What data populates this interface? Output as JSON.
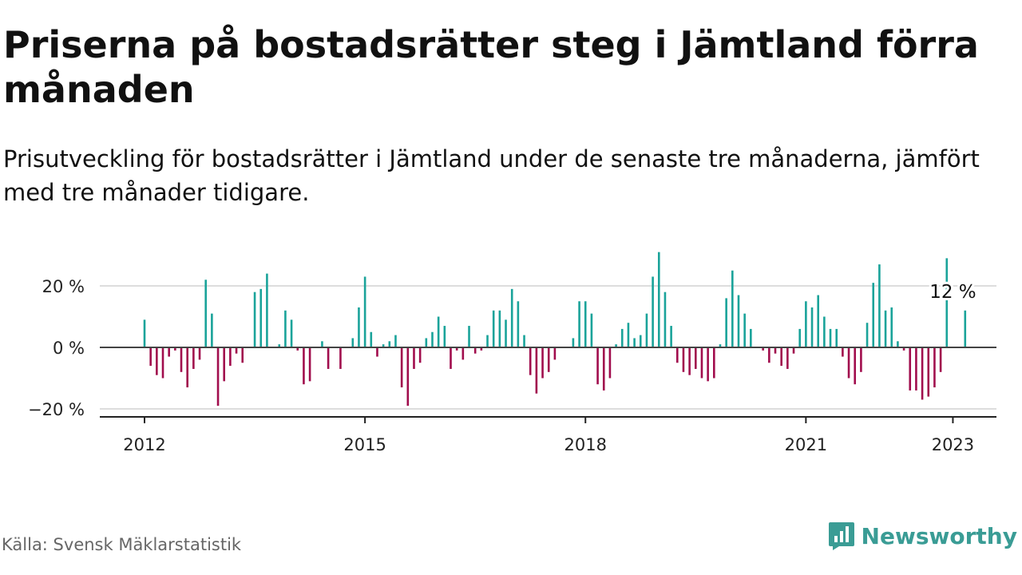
{
  "title": "Priserna på bostadsrätter steg i Jämtland förra månaden",
  "subtitle": "Prisutveckling för bostadsrätter i Jämtland under de senaste tre månaderna, jämfört med tre månader tidigare.",
  "source": "Källa: Svensk Mäklarstatistik",
  "brand": {
    "name": "Newsworthy",
    "logo_icon": "bar-chart-badge-icon",
    "color": "#3a9c95"
  },
  "colors": {
    "positive": "#1aa39a",
    "negative": "#a10d4d",
    "grid": "#dddddd",
    "zero_line": "#444444",
    "axis": "#222222"
  },
  "chart_data": {
    "type": "bar",
    "x_unit": "month",
    "start": "2012-01",
    "ylim": [
      -23,
      31
    ],
    "yticks": [
      20,
      0,
      -20
    ],
    "ytick_labels": [
      "20 %",
      "0 %",
      "−20 %"
    ],
    "xticks": [
      "2012",
      "2015",
      "2018",
      "2021",
      "2023"
    ],
    "annotation": {
      "text": "12 %",
      "at": "2023-01"
    },
    "values": [
      9,
      -6,
      -9,
      -10,
      -3,
      -1,
      -8,
      -13,
      -7,
      -4,
      22,
      11,
      -19,
      -11,
      -6,
      -2,
      -5,
      0,
      18,
      19,
      24,
      0,
      1,
      12,
      9,
      -1,
      -12,
      -11,
      0,
      2,
      -7,
      0,
      -7,
      0,
      3,
      13,
      23,
      5,
      -3,
      1,
      2,
      4,
      -13,
      -19,
      -7,
      -5,
      3,
      5,
      10,
      7,
      -7,
      -1,
      -4,
      7,
      -2,
      -1,
      4,
      12,
      12,
      9,
      19,
      15,
      4,
      -9,
      -15,
      -10,
      -8,
      -4,
      0,
      0,
      3,
      15,
      15,
      11,
      -12,
      -14,
      -10,
      1,
      6,
      8,
      3,
      4,
      11,
      23,
      31,
      18,
      7,
      -5,
      -8,
      -9,
      -7,
      -10,
      -11,
      -10,
      1,
      16,
      25,
      17,
      11,
      6,
      0,
      -1,
      -5,
      -2,
      -6,
      -7,
      -2,
      6,
      15,
      13,
      17,
      10,
      6,
      6,
      -3,
      -10,
      -12,
      -8,
      8,
      21,
      27,
      12,
      13,
      2,
      -1,
      -14,
      -14,
      -17,
      -16,
      -13,
      -8,
      29,
      0,
      0,
      12
    ]
  }
}
